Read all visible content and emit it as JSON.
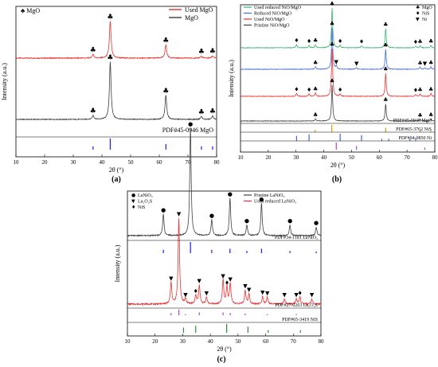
{
  "chart_data": [
    {
      "type": "line",
      "panel_label": "(a)",
      "xlabel": "2θ (°)",
      "ylabel": "Intensity (a.u.)",
      "xlim": [
        10,
        80
      ],
      "xticks": [
        10,
        20,
        30,
        40,
        50,
        60,
        70,
        80
      ],
      "corner_legend": "♣ MgO",
      "marker_symbol": "♣",
      "legend_position": "top-right",
      "series": [
        {
          "name": "Used MgO",
          "color": "#e8312f",
          "peaks": [
            {
              "x": 36.9,
              "h": 0.1,
              "marked": true
            },
            {
              "x": 42.9,
              "h": 1.0,
              "marked": true
            },
            {
              "x": 62.3,
              "h": 0.36,
              "marked": true
            },
            {
              "x": 74.7,
              "h": 0.05,
              "marked": true
            },
            {
              "x": 78.6,
              "h": 0.06,
              "marked": true
            }
          ]
        },
        {
          "name": "MgO",
          "color": "#3b3b3b",
          "peaks": [
            {
              "x": 36.9,
              "h": 0.07,
              "marked": true
            },
            {
              "x": 42.9,
              "h": 1.0,
              "marked": true
            },
            {
              "x": 62.3,
              "h": 0.42,
              "marked": true
            },
            {
              "x": 74.7,
              "h": 0.05,
              "marked": true
            },
            {
              "x": 78.6,
              "h": 0.06,
              "marked": true
            }
          ]
        }
      ],
      "references": [
        {
          "label": "PDF#45-0946  MgO",
          "color": "#1a1aff",
          "sticks": [
            {
              "x": 36.9,
              "h": 0.3
            },
            {
              "x": 42.9,
              "h": 1.0
            },
            {
              "x": 62.3,
              "h": 0.5
            },
            {
              "x": 74.7,
              "h": 0.3
            },
            {
              "x": 78.6,
              "h": 0.3
            }
          ]
        }
      ]
    },
    {
      "type": "line",
      "panel_label": "(b)",
      "xlabel": "2θ (°)",
      "ylabel": "Intensity (a.u.)",
      "xlim": [
        10,
        80
      ],
      "xticks": [
        10,
        20,
        30,
        40,
        50,
        60,
        70,
        80
      ],
      "legend_position": "top-left",
      "marker_legend": [
        {
          "symbol": "♣",
          "label": "MgO"
        },
        {
          "symbol": "♦",
          "label": "NiS"
        },
        {
          "symbol": "▼",
          "label": "Ni"
        }
      ],
      "series": [
        {
          "name": "Used reduced NiO/MgO",
          "color": "#3cb371",
          "peaks": [
            {
              "x": 30.2,
              "h": 0.08,
              "m": "♦"
            },
            {
              "x": 34.7,
              "h": 0.06,
              "m": "♦"
            },
            {
              "x": 37.0,
              "h": 0.08,
              "m": "♣"
            },
            {
              "x": 43.0,
              "h": 1.0,
              "m": "♣"
            },
            {
              "x": 45.9,
              "h": 0.06,
              "m": "♦"
            },
            {
              "x": 53.6,
              "h": 0.05,
              "m": "♦"
            },
            {
              "x": 62.3,
              "h": 0.48,
              "m": "♣"
            },
            {
              "x": 73.1,
              "h": 0.04,
              "m": "♦"
            },
            {
              "x": 74.7,
              "h": 0.05,
              "m": "♣"
            },
            {
              "x": 78.6,
              "h": 0.06,
              "m": "♣"
            }
          ]
        },
        {
          "name": "Reduced NiO/MgO",
          "color": "#4169e1",
          "peaks": [
            {
              "x": 37.0,
              "h": 0.06,
              "m": "♣"
            },
            {
              "x": 43.0,
              "h": 1.0,
              "m": "♣"
            },
            {
              "x": 44.5,
              "h": 0.08,
              "m": "▼"
            },
            {
              "x": 51.8,
              "h": 0.04,
              "m": "▼"
            },
            {
              "x": 62.3,
              "h": 0.48,
              "m": "♣"
            },
            {
              "x": 74.7,
              "h": 0.05,
              "m": "♣"
            },
            {
              "x": 76.4,
              "h": 0.04,
              "m": "▼"
            },
            {
              "x": 78.6,
              "h": 0.06,
              "m": "♣"
            }
          ]
        },
        {
          "name": "Used NiO/MgO",
          "color": "#e8312f",
          "peaks": [
            {
              "x": 30.2,
              "h": 0.06,
              "m": "♦"
            },
            {
              "x": 34.7,
              "h": 0.05,
              "m": "♦"
            },
            {
              "x": 37.0,
              "h": 0.07,
              "m": "♣"
            },
            {
              "x": 43.0,
              "h": 1.0,
              "m": "♣"
            },
            {
              "x": 45.9,
              "h": 0.05,
              "m": "♦"
            },
            {
              "x": 62.3,
              "h": 0.48,
              "m": "♣"
            },
            {
              "x": 73.1,
              "h": 0.04,
              "m": "♦"
            },
            {
              "x": 74.7,
              "h": 0.05,
              "m": "♣"
            },
            {
              "x": 78.6,
              "h": 0.06,
              "m": "♣"
            }
          ]
        },
        {
          "name": "Pristine NiO/MgO",
          "color": "#404040",
          "peaks": [
            {
              "x": 37.0,
              "h": 0.06,
              "m": "♣"
            },
            {
              "x": 43.0,
              "h": 1.0,
              "m": "♣"
            },
            {
              "x": 62.3,
              "h": 0.48,
              "m": "♣"
            },
            {
              "x": 74.7,
              "h": 0.05,
              "m": "♣"
            },
            {
              "x": 78.6,
              "h": 0.06,
              "m": "♣"
            }
          ]
        }
      ],
      "references": [
        {
          "label": "PDF#45-0946  MgO",
          "color": "#c8a000",
          "sticks": [
            {
              "x": 36.9,
              "h": 0.3
            },
            {
              "x": 42.9,
              "h": 1.0
            },
            {
              "x": 62.3,
              "h": 0.6
            },
            {
              "x": 74.7,
              "h": 0.2
            },
            {
              "x": 78.6,
              "h": 0.2
            }
          ]
        },
        {
          "label": "PDF#65-3762  NiS",
          "color": "#4169e1",
          "sticks": [
            {
              "x": 30.2,
              "h": 0.7
            },
            {
              "x": 34.7,
              "h": 0.9
            },
            {
              "x": 45.9,
              "h": 1.0
            },
            {
              "x": 53.6,
              "h": 0.8
            },
            {
              "x": 60.9,
              "h": 0.3
            },
            {
              "x": 63.4,
              "h": 0.3
            },
            {
              "x": 71.0,
              "h": 0.25
            },
            {
              "x": 73.1,
              "h": 0.3
            }
          ]
        },
        {
          "label": "PDF#04-0850  Ni",
          "color": "#b040d0",
          "sticks": [
            {
              "x": 44.5,
              "h": 1.0
            },
            {
              "x": 51.8,
              "h": 0.5
            },
            {
              "x": 76.4,
              "h": 0.3
            }
          ]
        }
      ]
    },
    {
      "type": "line",
      "panel_label": "(c)",
      "xlabel": "2θ (°)",
      "ylabel": "Intensity (a.u.)",
      "xlim": [
        10,
        80
      ],
      "xticks": [
        10,
        20,
        30,
        40,
        50,
        60,
        70,
        80
      ],
      "marker_legend": [
        {
          "symbol": "●",
          "label": "LaNiO₃"
        },
        {
          "symbol": "▼",
          "label": "La₂O₂S"
        },
        {
          "symbol": "♦",
          "label": "NiS"
        }
      ],
      "series": [
        {
          "name": "Pristine LaNiO₃",
          "color": "#404040",
          "peaks": [
            {
              "x": 23.0,
              "h": 0.2,
              "m": "●"
            },
            {
              "x": 32.8,
              "h": 1.0,
              "m": "●"
            },
            {
              "x": 40.5,
              "h": 0.15,
              "m": "●"
            },
            {
              "x": 47.1,
              "h": 0.35,
              "m": "●"
            },
            {
              "x": 53.2,
              "h": 0.1,
              "m": "●"
            },
            {
              "x": 58.5,
              "h": 0.3,
              "m": "●"
            },
            {
              "x": 68.8,
              "h": 0.1,
              "m": "●"
            },
            {
              "x": 78.3,
              "h": 0.08,
              "m": "●"
            }
          ]
        },
        {
          "name": "Used reduced LaNiO₃",
          "color": "#e8312f",
          "peaks": [
            {
              "x": 25.8,
              "h": 0.25,
              "m": "▼"
            },
            {
              "x": 28.6,
              "h": 1.0,
              "m": "▼"
            },
            {
              "x": 31.0,
              "h": 0.06,
              "m": "▼"
            },
            {
              "x": 34.7,
              "h": 0.1,
              "m": "♦"
            },
            {
              "x": 36.0,
              "h": 0.22,
              "m": "▼"
            },
            {
              "x": 38.6,
              "h": 0.08,
              "m": "▼"
            },
            {
              "x": 44.6,
              "h": 0.28,
              "m": "▼"
            },
            {
              "x": 46.0,
              "h": 0.2,
              "m": "♦"
            },
            {
              "x": 47.2,
              "h": 0.24,
              "m": "▼"
            },
            {
              "x": 52.6,
              "h": 0.16,
              "m": "▼"
            },
            {
              "x": 54.0,
              "h": 0.12,
              "m": "▼"
            },
            {
              "x": 58.9,
              "h": 0.09,
              "m": "▼"
            },
            {
              "x": 60.6,
              "h": 0.08,
              "m": "▼"
            },
            {
              "x": 66.8,
              "h": 0.06,
              "m": "▼"
            },
            {
              "x": 71.1,
              "h": 0.06,
              "m": "▼"
            },
            {
              "x": 72.4,
              "h": 0.08,
              "m": "♦"
            },
            {
              "x": 76.7,
              "h": 0.06,
              "m": "▼"
            }
          ]
        }
      ],
      "references": [
        {
          "label": "PDF#34-1181  LaNiO₃",
          "color": "#1a1aff",
          "sticks": [
            {
              "x": 23.0,
              "h": 0.3
            },
            {
              "x": 32.8,
              "h": 1.0
            },
            {
              "x": 40.5,
              "h": 0.3
            },
            {
              "x": 47.1,
              "h": 0.4
            },
            {
              "x": 53.2,
              "h": 0.2
            },
            {
              "x": 58.5,
              "h": 0.4
            },
            {
              "x": 68.8,
              "h": 0.2
            },
            {
              "x": 78.3,
              "h": 0.15
            }
          ]
        },
        {
          "label": "PDF#27-0263  La₂O₂S",
          "color": "#b040d0",
          "sticks": [
            {
              "x": 25.8,
              "h": 0.4
            },
            {
              "x": 28.6,
              "h": 1.0
            },
            {
              "x": 31.0,
              "h": 0.2
            },
            {
              "x": 36.0,
              "h": 0.5
            },
            {
              "x": 44.6,
              "h": 0.5
            },
            {
              "x": 47.2,
              "h": 0.4
            },
            {
              "x": 52.6,
              "h": 0.3
            },
            {
              "x": 60.6,
              "h": 0.2
            },
            {
              "x": 71.1,
              "h": 0.2
            }
          ]
        },
        {
          "label": "PDF#65-3419  NiS",
          "color": "#2e8b2e",
          "sticks": [
            {
              "x": 30.3,
              "h": 0.6
            },
            {
              "x": 34.7,
              "h": 0.8
            },
            {
              "x": 45.9,
              "h": 1.0
            },
            {
              "x": 53.6,
              "h": 0.7
            },
            {
              "x": 60.9,
              "h": 0.3
            },
            {
              "x": 72.6,
              "h": 0.3
            }
          ]
        }
      ]
    }
  ]
}
